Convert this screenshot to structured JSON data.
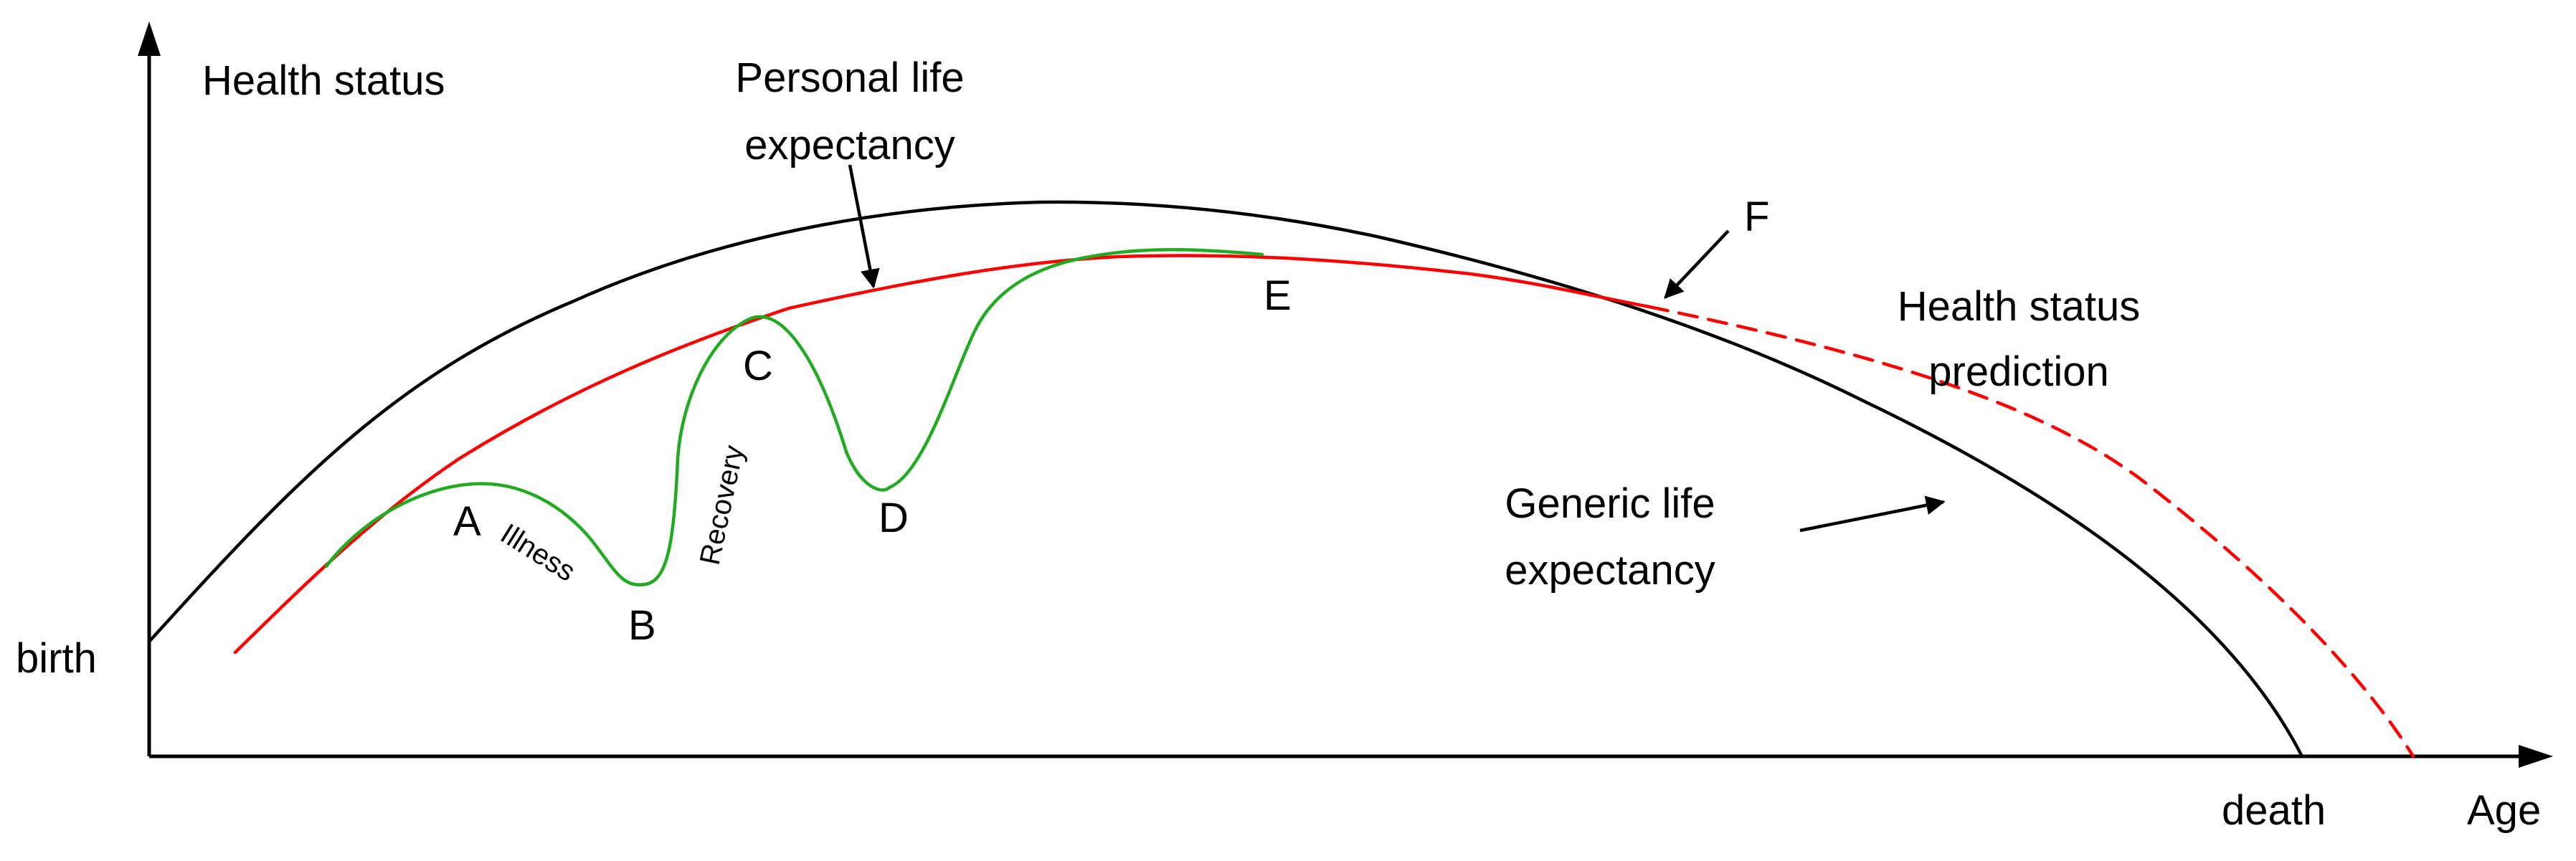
{
  "axes": {
    "y_label": "Health status",
    "x_label": "Age",
    "start_label": "birth",
    "end_label": "death"
  },
  "curves": {
    "generic": {
      "label": "Generic life expectancy",
      "label_lines": [
        "Generic life",
        "expectancy"
      ],
      "color": "#000000"
    },
    "personal": {
      "label": "Personal life expectancy",
      "label_lines": [
        "Personal life",
        "expectancy"
      ],
      "color": "#ff0000"
    },
    "prediction": {
      "label": "Health status prediction",
      "label_lines": [
        "Health status",
        "prediction"
      ],
      "color": "#ff0000",
      "style": "dashed"
    },
    "health_status": {
      "color": "#22aa22"
    }
  },
  "points": {
    "a": "A",
    "b": "B",
    "c": "C",
    "d": "D",
    "e": "E",
    "f": "F"
  },
  "annotations": {
    "illness": "Illness",
    "recovery": "Recovery"
  }
}
